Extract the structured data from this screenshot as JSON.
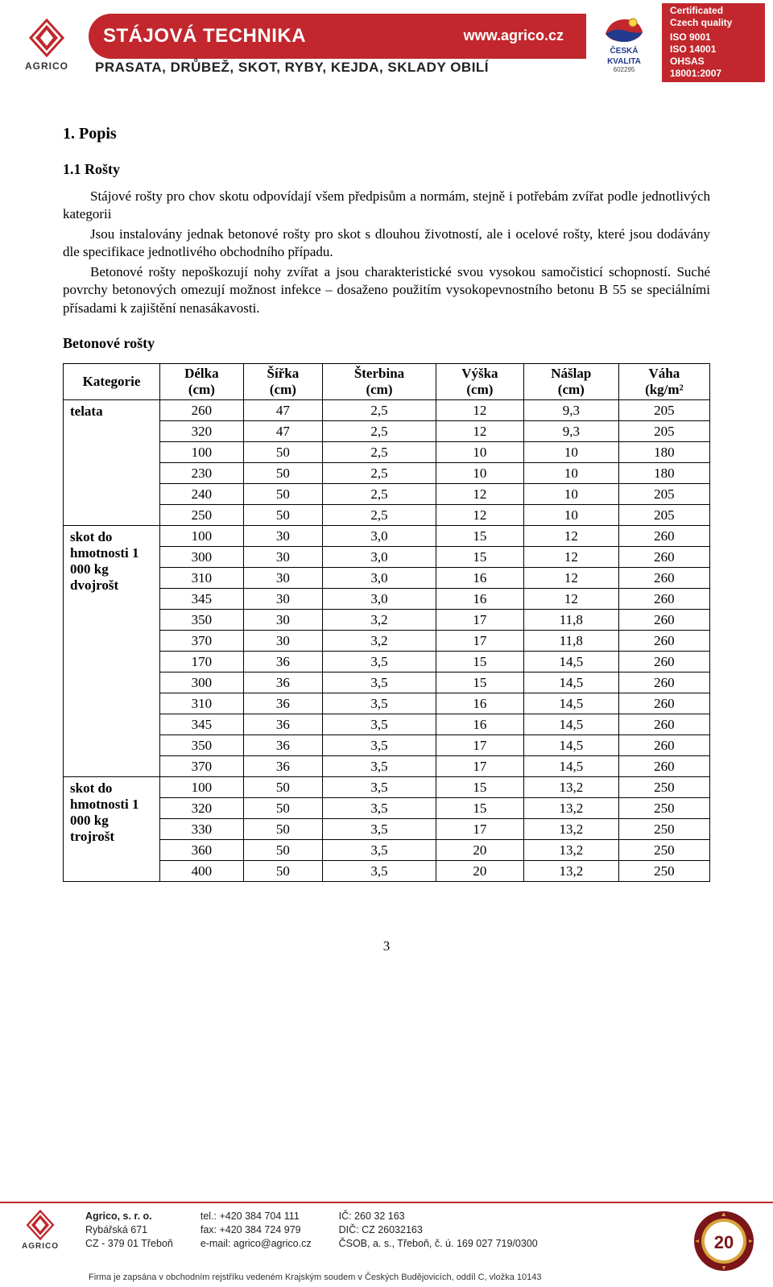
{
  "header": {
    "logo_label": "AGRICO",
    "strip_title": "STÁJOVÁ TECHNIKA",
    "strip_url": "www.agrico.cz",
    "subline": "PRASATA, DRŮBEŽ, SKOT, RYBY, KEJDA, SKLADY OBILÍ",
    "ck_label1": "ČESKÁ",
    "ck_label2": "KVALITA",
    "ck_num": "602295",
    "cert_l1": "Certificated",
    "cert_l2": "Czech quality",
    "cert_l3": "ISO 9001",
    "cert_l4": "ISO 14001",
    "cert_l5": "OHSAS",
    "cert_l6": "18001:2007"
  },
  "content": {
    "section_title": "1.  Popis",
    "sub_title": "1.1    Rošty",
    "p1": "Stájové rošty pro chov skotu odpovídají všem předpisům a normám, stejně i potřebám zvířat podle jednotlivých kategorii",
    "p2": "Jsou instalovány jednak betonové rošty pro skot s dlouhou životností, ale i ocelové rošty, které jsou dodávány dle specifikace jednotlivého obchodního případu.",
    "p3": "Betonové rošty nepoškozují nohy zvířat a jsou charakteristické svou vysokou samočisticí schopností. Suché povrchy betonových omezují možnost infekce – dosaženo použitím vysokopevnostního betonu B 55 se speciálními přísadami k zajištění nenasákavosti.",
    "table_title": "Betonové rošty"
  },
  "table": {
    "columns": [
      "Kategorie",
      "Délka (cm)",
      "Šířka (cm)",
      "Šterbina (cm)",
      "Výška (cm)",
      "Nášlap (cm)",
      "Váha (kg/m²"
    ],
    "col_line1": [
      "Kategorie",
      "Délka",
      "Šířka",
      "Šterbina",
      "Výška",
      "Nášlap",
      "Váha"
    ],
    "col_line2": [
      "",
      "(cm)",
      "(cm)",
      "(cm)",
      "(cm)",
      "(cm)",
      "(kg/m²"
    ],
    "groups": [
      {
        "label": "telata",
        "rows": [
          [
            "260",
            "47",
            "2,5",
            "12",
            "9,3",
            "205"
          ],
          [
            "320",
            "47",
            "2,5",
            "12",
            "9,3",
            "205"
          ],
          [
            "100",
            "50",
            "2,5",
            "10",
            "10",
            "180"
          ],
          [
            "230",
            "50",
            "2,5",
            "10",
            "10",
            "180"
          ],
          [
            "240",
            "50",
            "2,5",
            "12",
            "10",
            "205"
          ],
          [
            "250",
            "50",
            "2,5",
            "12",
            "10",
            "205"
          ]
        ]
      },
      {
        "label": "skot do hmotnosti 1 000 kg dvojrošt",
        "rows": [
          [
            "100",
            "30",
            "3,0",
            "15",
            "12",
            "260"
          ],
          [
            "300",
            "30",
            "3,0",
            "15",
            "12",
            "260"
          ],
          [
            "310",
            "30",
            "3,0",
            "16",
            "12",
            "260"
          ],
          [
            "345",
            "30",
            "3,0",
            "16",
            "12",
            "260"
          ],
          [
            "350",
            "30",
            "3,2",
            "17",
            "11,8",
            "260"
          ],
          [
            "370",
            "30",
            "3,2",
            "17",
            "11,8",
            "260"
          ],
          [
            "170",
            "36",
            "3,5",
            "15",
            "14,5",
            "260"
          ],
          [
            "300",
            "36",
            "3,5",
            "15",
            "14,5",
            "260"
          ],
          [
            "310",
            "36",
            "3,5",
            "16",
            "14,5",
            "260"
          ],
          [
            "345",
            "36",
            "3,5",
            "16",
            "14,5",
            "260"
          ],
          [
            "350",
            "36",
            "3,5",
            "17",
            "14,5",
            "260"
          ],
          [
            "370",
            "36",
            "3,5",
            "17",
            "14,5",
            "260"
          ]
        ]
      },
      {
        "label": "skot do hmotnosti 1 000 kg trojrošt",
        "rows": [
          [
            "100",
            "50",
            "3,5",
            "15",
            "13,2",
            "250"
          ],
          [
            "320",
            "50",
            "3,5",
            "15",
            "13,2",
            "250"
          ],
          [
            "330",
            "50",
            "3,5",
            "17",
            "13,2",
            "250"
          ],
          [
            "360",
            "50",
            "3,5",
            "20",
            "13,2",
            "250"
          ],
          [
            "400",
            "50",
            "3,5",
            "20",
            "13,2",
            "250"
          ]
        ]
      }
    ]
  },
  "page_num": "3",
  "footer": {
    "logo_label": "AGRICO",
    "c1_l1": "Agrico, s. r. o.",
    "c1_l2": "Rybářská 671",
    "c1_l3": "CZ - 379 01 Třeboň",
    "c2_l1": "tel.: +420 384 704 111",
    "c2_l2": "fax: +420 384 724 979",
    "c2_l3": "e-mail: agrico@agrico.cz",
    "c3_l1": "IČ: 260 32 163",
    "c3_l2": "DIČ: CZ 26032163",
    "c3_l3": "ČSOB, a. s., Třeboň, č. ú. 169 027 719/0300",
    "bottom": "Firma je zapsána v obchodním rejstříku vedeném Krajským soudem v Českých Budějovicích, oddíl C, vložka 10143",
    "seal_num": "20"
  },
  "style": {
    "brand_red": "#c1272d",
    "brand_blue": "#223a8e",
    "text_color": "#000000",
    "body_font": "Times New Roman",
    "header_font": "Arial",
    "body_fontsize_pt": 13,
    "heading_fontsize_pt": 15,
    "table_border_color": "#000000",
    "table_cell_align": "center",
    "col_widths_pct": [
      15,
      14,
      14,
      14,
      14,
      14,
      15
    ]
  }
}
